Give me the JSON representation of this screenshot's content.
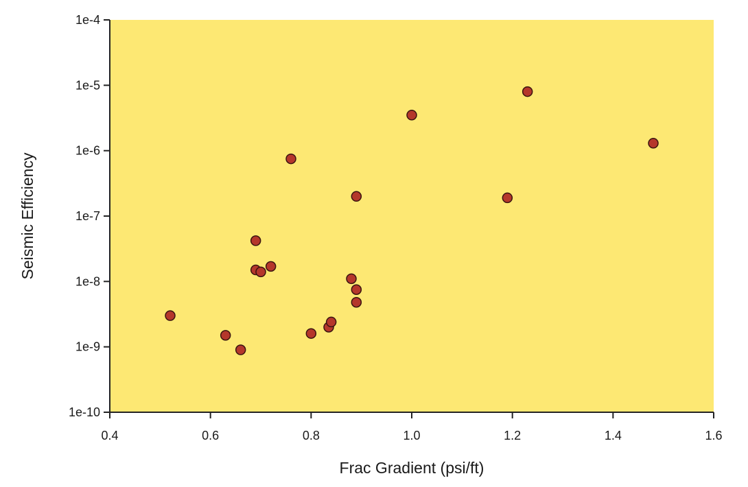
{
  "chart_data": {
    "type": "scatter",
    "title": "",
    "xlabel": "Frac Gradient (psi/ft)",
    "ylabel": "Seismic Efficiency",
    "xlim": [
      0.4,
      1.6
    ],
    "ylim": [
      1e-10,
      0.0001
    ],
    "yscale": "log",
    "grid": false,
    "legend": "none",
    "x_ticks": [
      "0.4",
      "0.6",
      "0.8",
      "1.0",
      "1.2",
      "1.4",
      "1.6"
    ],
    "y_ticks": [
      "1e-4",
      "1e-5",
      "1e-6",
      "1e-7",
      "1e-8",
      "1e-9",
      "1e-10"
    ],
    "colors": {
      "plot_background": "#fde873",
      "marker_fill": "#b5372b",
      "marker_edge": "#3a1410"
    },
    "series": [
      {
        "x": [
          0.52,
          0.63,
          0.66,
          0.69,
          0.69,
          0.7,
          0.72,
          0.76,
          0.8,
          0.835,
          0.84,
          0.88,
          0.89,
          0.89,
          0.89,
          1.0,
          1.19,
          1.23,
          1.48
        ],
        "y": [
          3e-09,
          1.5e-09,
          9e-10,
          4.2e-08,
          1.5e-08,
          1.4e-08,
          1.7e-08,
          7.5e-07,
          1.6e-09,
          2e-09,
          2.4e-09,
          1.1e-08,
          7.5e-09,
          4.8e-09,
          2e-07,
          3.5e-06,
          1.9e-07,
          8e-06,
          1.3e-06
        ]
      }
    ]
  }
}
